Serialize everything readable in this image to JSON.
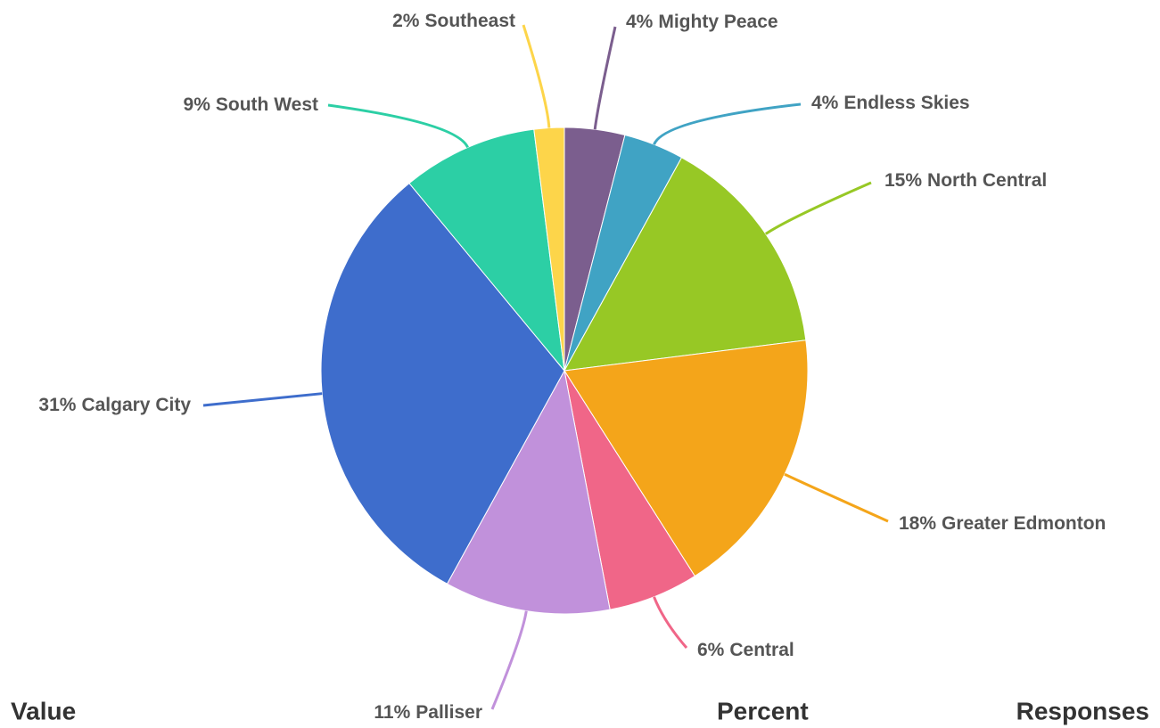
{
  "chart_data": {
    "type": "pie",
    "categories": [
      "Mighty Peace",
      "Endless Skies",
      "North Central",
      "Greater Edmonton",
      "Central",
      "Palliser",
      "Calgary City",
      "South West",
      "Southeast"
    ],
    "values": [
      4,
      4,
      15,
      18,
      6,
      11,
      31,
      9,
      2
    ],
    "value_labels": [
      "4%",
      "4%",
      "15%",
      "18%",
      "6%",
      "11%",
      "31%",
      "9%",
      "2%"
    ],
    "colors": [
      "#7b5e8e",
      "#40a3c4",
      "#97c825",
      "#f4a51a",
      "#f06688",
      "#c191db",
      "#3e6dcc",
      "#2ccfa5",
      "#fdd54a"
    ]
  },
  "table": {
    "headers": [
      "Value",
      "Percent",
      "Responses"
    ]
  }
}
